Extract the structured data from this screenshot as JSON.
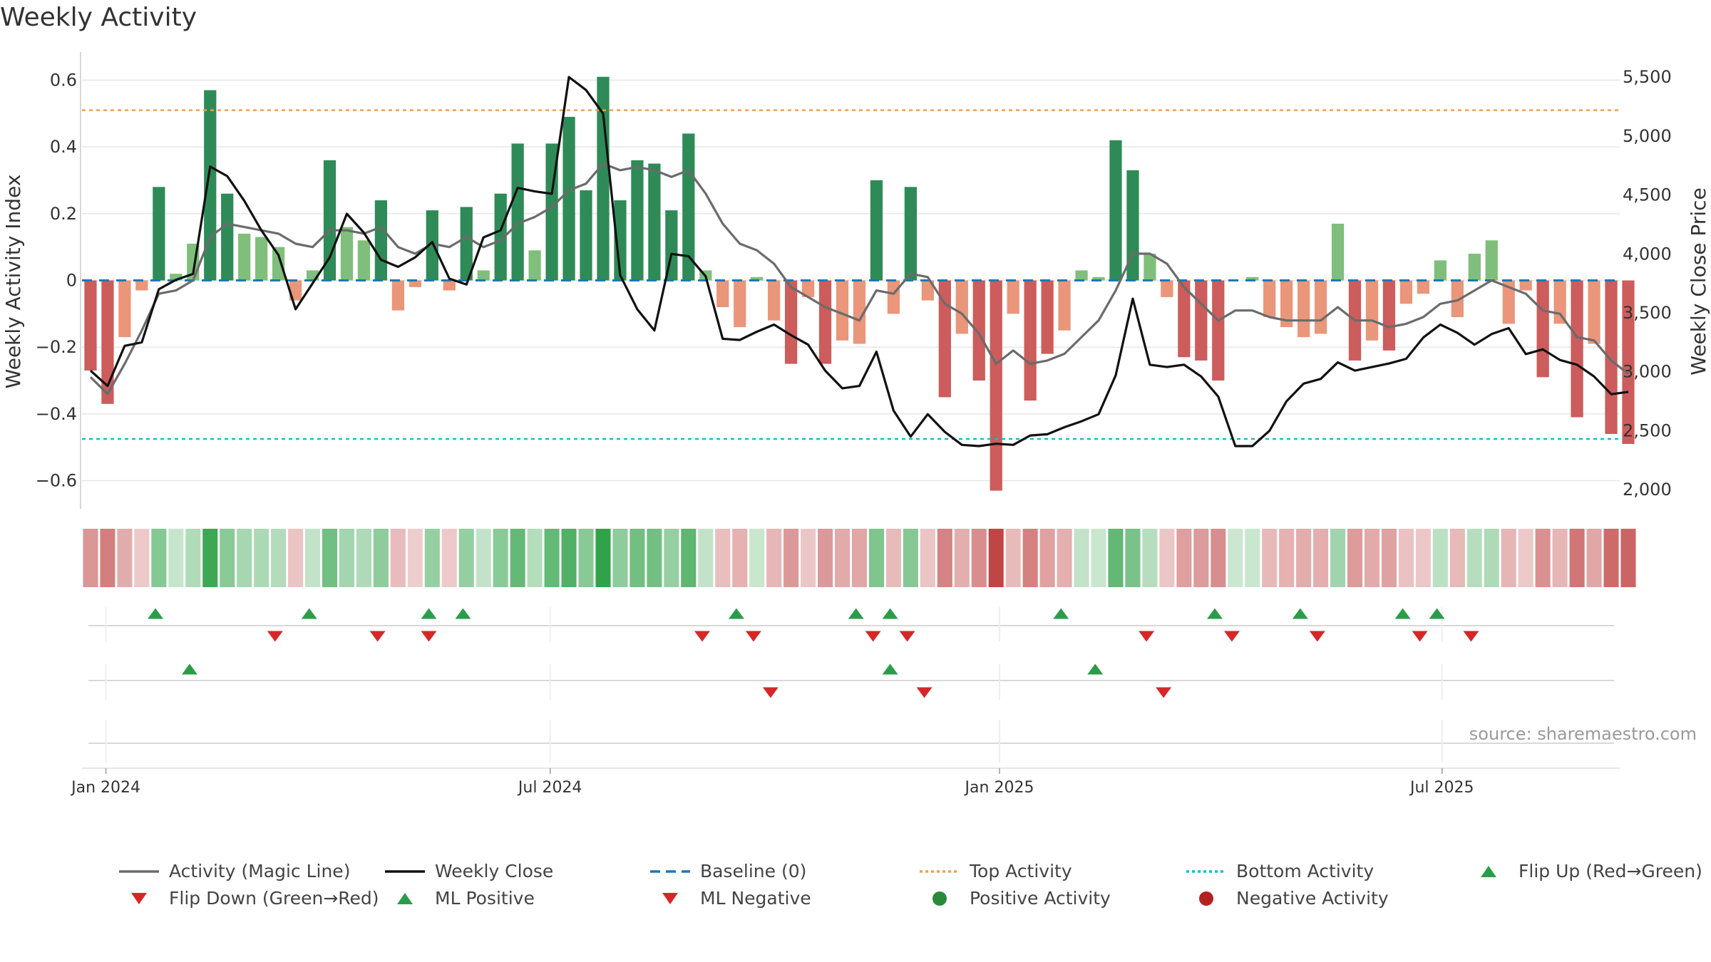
{
  "chart_data": {
    "type": "bar",
    "title": "Weekly Activity",
    "ylabel": "Weekly Activity Index",
    "y2label": "Weekly Close Price",
    "ylim": [
      -0.68,
      0.68
    ],
    "y2lim": [
      1850,
      5700
    ],
    "yticks": [
      0.6,
      0.4,
      0.2,
      0,
      -0.2,
      -0.4,
      -0.6
    ],
    "ytick_labels": [
      "0.6",
      "0.4",
      "0.2",
      "0",
      "−0.2",
      "−0.4",
      "−0.6"
    ],
    "y2ticks": [
      5500,
      5000,
      4500,
      4000,
      3500,
      3000,
      2500,
      2000
    ],
    "y2tick_labels": [
      "5,500",
      "5,000",
      "4,500",
      "4,000",
      "3,500",
      "3,000",
      "2,500",
      "2,000"
    ],
    "xticks": [
      {
        "label": "Jan 2024",
        "week": 1.4
      },
      {
        "label": "Jul 2024",
        "week": 27.4
      },
      {
        "label": "Jan 2025",
        "week": 53.7
      },
      {
        "label": "Jul 2025",
        "week": 79.6
      }
    ],
    "n_weeks": 90,
    "activity": [
      -0.27,
      -0.37,
      -0.17,
      -0.03,
      0.28,
      0.02,
      0.11,
      0.57,
      0.26,
      0.14,
      0.13,
      0.1,
      -0.06,
      0.03,
      0.36,
      0.16,
      0.12,
      0.24,
      -0.09,
      -0.02,
      0.21,
      -0.03,
      0.22,
      0.03,
      0.26,
      0.41,
      0.09,
      0.41,
      0.49,
      0.27,
      0.61,
      0.24,
      0.36,
      0.35,
      0.21,
      0.44,
      0.03,
      -0.08,
      -0.14,
      0.01,
      -0.12,
      -0.25,
      -0.05,
      -0.25,
      -0.18,
      -0.19,
      0.3,
      -0.1,
      0.28,
      -0.06,
      -0.35,
      -0.16,
      -0.3,
      -0.63,
      -0.1,
      -0.36,
      -0.22,
      -0.15,
      0.03,
      0.01,
      0.42,
      0.33,
      0.08,
      -0.05,
      -0.23,
      -0.24,
      -0.3,
      0.0,
      0.01,
      -0.11,
      -0.14,
      -0.17,
      -0.16,
      0.17,
      -0.24,
      -0.18,
      -0.21,
      -0.07,
      -0.04,
      0.06,
      -0.11,
      0.08,
      0.12,
      -0.13,
      -0.03,
      -0.29,
      -0.13,
      -0.41,
      -0.19,
      -0.46,
      -0.49
    ],
    "series": [
      {
        "name": "Activity (Magic Line)",
        "axis": "left",
        "color": "#6b6b6b",
        "values": [
          -0.29,
          -0.34,
          -0.25,
          -0.15,
          -0.04,
          -0.03,
          0.0,
          0.13,
          0.17,
          0.16,
          0.15,
          0.14,
          0.11,
          0.1,
          0.15,
          0.15,
          0.14,
          0.16,
          0.1,
          0.08,
          0.11,
          0.1,
          0.13,
          0.1,
          0.12,
          0.17,
          0.19,
          0.22,
          0.27,
          0.29,
          0.35,
          0.33,
          0.34,
          0.33,
          0.31,
          0.33,
          0.26,
          0.17,
          0.11,
          0.09,
          0.05,
          -0.02,
          -0.05,
          -0.08,
          -0.1,
          -0.12,
          -0.03,
          -0.04,
          0.02,
          0.01,
          -0.07,
          -0.1,
          -0.16,
          -0.25,
          -0.21,
          -0.25,
          -0.24,
          -0.22,
          -0.17,
          -0.12,
          -0.03,
          0.08,
          0.08,
          0.05,
          -0.02,
          -0.07,
          -0.12,
          -0.09,
          -0.09,
          -0.11,
          -0.12,
          -0.12,
          -0.12,
          -0.08,
          -0.12,
          -0.12,
          -0.14,
          -0.13,
          -0.11,
          -0.07,
          -0.06,
          -0.03,
          0.0,
          -0.02,
          -0.04,
          -0.09,
          -0.1,
          -0.17,
          -0.18,
          -0.24,
          -0.28
        ]
      },
      {
        "name": "Weekly Close",
        "axis": "right",
        "color": "#111111",
        "values": [
          3010,
          2880,
          3220,
          3250,
          3700,
          3780,
          3830,
          4740,
          4660,
          4450,
          4200,
          3990,
          3530,
          3750,
          3970,
          4340,
          4180,
          3950,
          3890,
          3970,
          4100,
          3790,
          3740,
          4140,
          4200,
          4560,
          4530,
          4510,
          5500,
          5390,
          5190,
          3820,
          3530,
          3350,
          4000,
          3980,
          3810,
          3280,
          3270,
          3340,
          3400,
          3310,
          3230,
          3010,
          2860,
          2880,
          3170,
          2670,
          2450,
          2640,
          2490,
          2380,
          2370,
          2390,
          2380,
          2460,
          2470,
          2530,
          2580,
          2640,
          2970,
          3620,
          3060,
          3040,
          3060,
          2960,
          2790,
          2370,
          2370,
          2500,
          2750,
          2900,
          2940,
          3080,
          3010,
          3040,
          3070,
          3110,
          3290,
          3400,
          3330,
          3230,
          3320,
          3370,
          3150,
          3190,
          3100,
          3060,
          2960,
          2810,
          2830
        ]
      },
      {
        "name": "Baseline (0)",
        "value": 0,
        "color": "#1f77b4"
      },
      {
        "name": "Top Activity",
        "value": 0.51,
        "color": "#f0a050"
      },
      {
        "name": "Bottom Activity",
        "value": -0.475,
        "color": "#17becf"
      }
    ],
    "heat_strip": [
      0.27,
      0.37,
      0.17,
      0.03,
      0.28,
      0.02,
      0.11,
      0.57,
      0.26,
      0.14,
      0.13,
      0.1,
      0.06,
      0.03,
      0.36,
      0.16,
      0.12,
      0.24,
      0.09,
      0.02,
      0.21,
      0.03,
      0.22,
      0.03,
      0.26,
      0.41,
      0.09,
      0.41,
      0.49,
      0.27,
      0.61,
      0.24,
      0.36,
      0.35,
      0.21,
      0.44,
      0.03,
      0.08,
      0.14,
      0.01,
      0.12,
      0.25,
      0.05,
      0.25,
      0.18,
      0.19,
      0.3,
      0.1,
      0.28,
      0.06,
      0.35,
      0.16,
      0.3,
      0.63,
      0.1,
      0.36,
      0.22,
      0.15,
      0.03,
      0.01,
      0.42,
      0.33,
      0.08,
      0.05,
      0.23,
      0.24,
      0.3,
      0.0,
      0.01,
      0.11,
      0.14,
      0.17,
      0.16,
      0.17,
      0.24,
      0.18,
      0.21,
      0.07,
      0.04,
      0.06,
      0.11,
      0.08,
      0.12,
      0.13,
      0.03,
      0.29,
      0.13,
      0.41,
      0.19,
      0.46,
      0.49
    ],
    "flip_up_weeks": [
      4.3,
      13.3,
      20.3,
      22.3,
      38.3,
      45.3,
      47.3,
      57.3,
      66.3,
      71.3,
      77.3,
      79.3
    ],
    "flip_down_weeks": [
      11.3,
      17.3,
      20.3,
      36.3,
      39.3,
      46.3,
      48.3,
      62.3,
      67.3,
      72.3,
      78.3,
      81.3
    ],
    "ml_positive_weeks": [
      6.3,
      47.3,
      59.3
    ],
    "ml_negative_weeks": [
      40.3,
      49.3,
      63.3
    ],
    "positive_activity_weeks": [],
    "negative_activity_weeks": []
  },
  "legend": [
    {
      "label": "Activity (Magic Line)",
      "kind": "line",
      "color": "#6b6b6b"
    },
    {
      "label": "Weekly Close",
      "kind": "line",
      "color": "#111111"
    },
    {
      "label": "Baseline (0)",
      "kind": "dashed",
      "color": "#1f77b4"
    },
    {
      "label": "Top Activity",
      "kind": "dotted",
      "color": "#f0a050"
    },
    {
      "label": "Bottom Activity",
      "kind": "dotted",
      "color": "#17becf"
    },
    {
      "label": "Flip Up (Red→Green)",
      "kind": "up",
      "color": "#2a9d4a"
    },
    {
      "label": "Flip Down (Green→Red)",
      "kind": "down",
      "color": "#d62728"
    },
    {
      "label": "ML Positive",
      "kind": "up",
      "color": "#2a9d4a"
    },
    {
      "label": "ML Negative",
      "kind": "down",
      "color": "#d62728"
    },
    {
      "label": "Positive Activity",
      "kind": "dot",
      "color": "#2a8a3a"
    },
    {
      "label": "Negative Activity",
      "kind": "dot",
      "color": "#b22222"
    }
  ],
  "source": "source: sharemaestro.com",
  "colors": {
    "pos_strong": "#2e8b57",
    "pos_light": "#7fbf7b",
    "neg_strong": "#cd5c5c",
    "neg_light": "#e9967a",
    "grid": "#e6e6e6"
  }
}
